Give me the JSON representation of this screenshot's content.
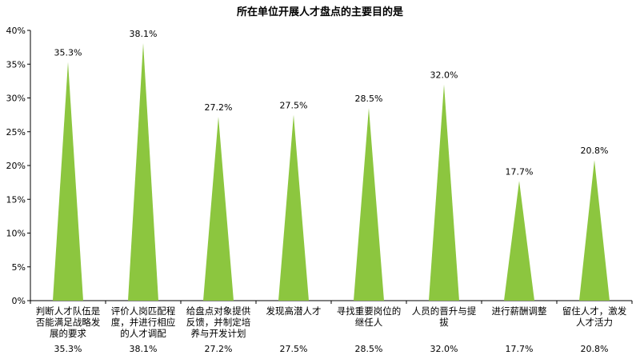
{
  "chart_data": {
    "type": "bar",
    "title": "所在单位开展人才盘点的主要目的是",
    "categories": [
      [
        "判断人才队伍是",
        "否能满足战略发",
        "展的要求"
      ],
      [
        "评价人岗匹配程",
        "度，并进行相应",
        "的人才调配"
      ],
      [
        "给盘点对象提供",
        "反馈，并制定培",
        "养与开发计划"
      ],
      [
        "发现高潜人才"
      ],
      [
        "寻找重要岗位的",
        "继任人"
      ],
      [
        "人员的晋升与提",
        "拔"
      ],
      [
        "进行薪酬调整"
      ],
      [
        "留住人才，激发",
        "人才活力"
      ]
    ],
    "values": [
      35.3,
      38.1,
      27.2,
      27.5,
      28.5,
      32.0,
      17.7,
      20.8
    ],
    "data_labels": [
      "35.3%",
      "38.1%",
      "27.2%",
      "27.5%",
      "28.5%",
      "32.0%",
      "17.7%",
      "20.8%"
    ],
    "yticks": [
      "0%",
      "5%",
      "10%",
      "15%",
      "20%",
      "25%",
      "30%",
      "35%",
      "40%"
    ],
    "ylim": [
      0,
      40
    ],
    "bar_color": "#8cc63f",
    "grid": false,
    "legend": "none"
  }
}
